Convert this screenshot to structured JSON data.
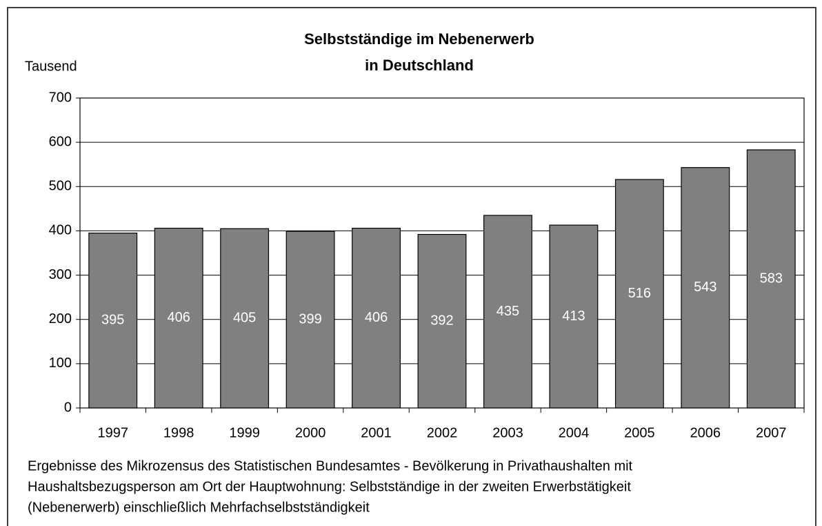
{
  "chart_data": {
    "type": "bar",
    "title": [
      "Selbstständige im Nebenerwerb",
      "in Deutschland"
    ],
    "y_label": "Tausend",
    "categories": [
      "1997",
      "1998",
      "1999",
      "2000",
      "2001",
      "2002",
      "2003",
      "2004",
      "2005",
      "2006",
      "2007"
    ],
    "values": [
      395,
      406,
      405,
      399,
      406,
      392,
      435,
      413,
      516,
      543,
      583
    ],
    "color": "#808080",
    "ylim": [
      0,
      700
    ],
    "yticks": [
      0,
      100,
      200,
      300,
      400,
      500,
      600,
      700
    ],
    "grid": true,
    "note": [
      "Ergebnisse des Mikrozensus des Statistischen Bundesamtes - Bevölkerung in Privathaushalten mit",
      "Haushaltsbezugsperson am Ort der Hauptwohnung: Selbstständige in der zweiten Erwerbstätigkeit",
      "(Nebenerwerb) einschließlich Mehrfachselbstständigkeit"
    ]
  }
}
